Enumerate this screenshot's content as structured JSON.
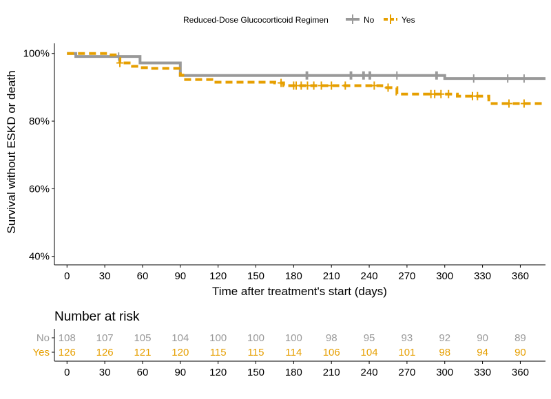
{
  "chart_data": {
    "type": "line",
    "subtype": "kaplan-meier",
    "ylabel": "Survival without ESKD or death",
    "xlabel": "Time after treatment's start (days)",
    "xlim": [
      -10,
      380
    ],
    "ylim": [
      0.375,
      1.03
    ],
    "xticks": [
      0,
      30,
      60,
      90,
      120,
      150,
      180,
      210,
      240,
      270,
      300,
      330,
      360
    ],
    "xtick_labels": [
      "0",
      "30",
      "60",
      "90",
      "120",
      "150",
      "180",
      "210",
      "240",
      "270",
      "300",
      "330",
      "360"
    ],
    "yticks": [
      0.4,
      0.6,
      0.8,
      1.0
    ],
    "ytick_labels": [
      "40%",
      "60%",
      "80%",
      "100%"
    ],
    "grid": false,
    "legend": {
      "title": "Reduced-Dose Glucocorticoid Regimen",
      "position": "top"
    },
    "series": [
      {
        "name": "No",
        "color": "#999999",
        "dash": "solid",
        "steps": [
          [
            0,
            1.0
          ],
          [
            7,
            0.991
          ],
          [
            58,
            0.972
          ],
          [
            90,
            0.935
          ],
          [
            300,
            0.926
          ],
          [
            380,
            0.926
          ]
        ],
        "censored": [
          41,
          190,
          191,
          225,
          226,
          235,
          236,
          240,
          241,
          262,
          293,
          294,
          323,
          350,
          363
        ]
      },
      {
        "name": "Yes",
        "color": "#E69F00",
        "dash": "dashed",
        "steps": [
          [
            0,
            1.0
          ],
          [
            33,
            0.996
          ],
          [
            42,
            0.972
          ],
          [
            52,
            0.962
          ],
          [
            58,
            0.958
          ],
          [
            65,
            0.956
          ],
          [
            90,
            0.936
          ],
          [
            92,
            0.923
          ],
          [
            115,
            0.915
          ],
          [
            165,
            0.913
          ],
          [
            172,
            0.905
          ],
          [
            250,
            0.899
          ],
          [
            262,
            0.88
          ],
          [
            310,
            0.874
          ],
          [
            335,
            0.852
          ],
          [
            380,
            0.852
          ]
        ],
        "censored": [
          42,
          170,
          180,
          182,
          186,
          191,
          196,
          202,
          210,
          221,
          244,
          255,
          289,
          292,
          297,
          303,
          322,
          326,
          351,
          363
        ]
      }
    ],
    "risk_table": {
      "title": "Number at risk",
      "times": [
        "0",
        "30",
        "60",
        "90",
        "120",
        "150",
        "180",
        "210",
        "240",
        "270",
        "300",
        "330",
        "360"
      ],
      "rows": [
        {
          "label": "No",
          "color": "#999999",
          "values": [
            "108",
            "107",
            "105",
            "104",
            "100",
            "100",
            "100",
            "98",
            "95",
            "93",
            "92",
            "90",
            "89"
          ]
        },
        {
          "label": "Yes",
          "color": "#E69F00",
          "values": [
            "126",
            "126",
            "121",
            "120",
            "115",
            "115",
            "114",
            "106",
            "104",
            "101",
            "98",
            "94",
            "90"
          ]
        }
      ]
    }
  }
}
